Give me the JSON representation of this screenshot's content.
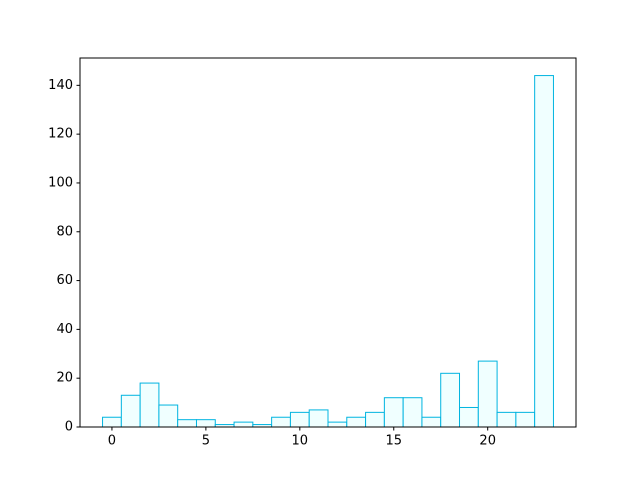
{
  "chart_data": {
    "type": "histogram",
    "bins": [
      -0.5,
      0.5,
      1.5,
      2.5,
      3.5,
      4.5,
      5.5,
      6.5,
      7.5,
      8.5,
      9.5,
      10.5,
      11.5,
      12.5,
      13.5,
      14.5,
      15.5,
      16.5,
      17.5,
      18.5,
      19.5,
      20.5,
      21.5,
      22.5,
      23.5
    ],
    "values": [
      4,
      13,
      18,
      9,
      3,
      3,
      1,
      2,
      1,
      4,
      6,
      7,
      2,
      4,
      6,
      12,
      12,
      4,
      22,
      8,
      27,
      6,
      6,
      144
    ],
    "color": "#00b4e0",
    "fill": "#f0ffff",
    "xlim": [
      -1.7,
      24.7
    ],
    "xticks": [
      0,
      5,
      10,
      15,
      20
    ],
    "ylim": [
      0,
      151.2
    ],
    "yticks": [
      0,
      20,
      40,
      60,
      80,
      100,
      120,
      140
    ],
    "grid": false
  }
}
